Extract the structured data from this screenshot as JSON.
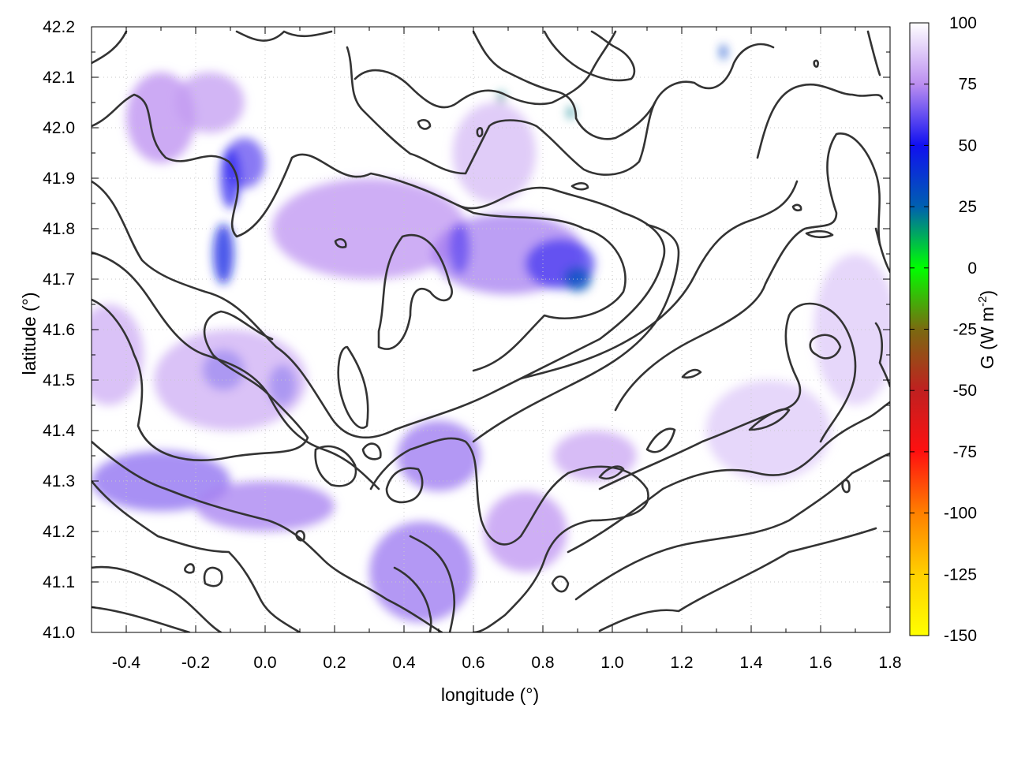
{
  "chart_data": {
    "type": "heatmap",
    "title": "",
    "xlabel": "longitude (°)",
    "ylabel": "latitude (°)",
    "xlim": [
      -0.5,
      1.8
    ],
    "ylim": [
      41.0,
      42.2
    ],
    "x_ticks": [
      "-0.4",
      "-0.2",
      "0.0",
      "0.2",
      "0.4",
      "0.6",
      "0.8",
      "1.0",
      "1.2",
      "1.4",
      "1.6",
      "1.8"
    ],
    "y_ticks": [
      "41.0",
      "41.1",
      "41.2",
      "41.3",
      "41.4",
      "41.5",
      "41.6",
      "41.7",
      "41.8",
      "41.9",
      "42.0",
      "42.1",
      "42.2"
    ],
    "grid": true,
    "colorbar": {
      "label": "G (W m",
      "label_superscript": "-2",
      "label_close": ")",
      "range": [
        -150,
        100
      ],
      "ticks": [
        "100",
        "75",
        "50",
        "25",
        "0",
        "-25",
        "-50",
        "-75",
        "-100",
        "-125",
        "-150"
      ],
      "stops": [
        {
          "value": 100,
          "color": "#ffffff"
        },
        {
          "value": 75,
          "color": "#bb8ef0"
        },
        {
          "value": 50,
          "color": "#1010f0"
        },
        {
          "value": 25,
          "color": "#0060b0"
        },
        {
          "value": 0,
          "color": "#00ff00"
        },
        {
          "value": -25,
          "color": "#7a6a10"
        },
        {
          "value": -50,
          "color": "#c02020"
        },
        {
          "value": -75,
          "color": "#ff1010"
        },
        {
          "value": -100,
          "color": "#ff8000"
        },
        {
          "value": -125,
          "color": "#ffd000"
        },
        {
          "value": -150,
          "color": "#ffff00"
        }
      ]
    },
    "field_patches": [
      {
        "lon": -0.3,
        "lat": 42.02,
        "rx": 0.1,
        "ry": 0.09,
        "value": 75
      },
      {
        "lon": -0.16,
        "lat": 42.05,
        "rx": 0.1,
        "ry": 0.06,
        "value": 78
      },
      {
        "lon": -0.06,
        "lat": 41.93,
        "rx": 0.06,
        "ry": 0.05,
        "value": 62
      },
      {
        "lon": -0.12,
        "lat": 41.75,
        "rx": 0.03,
        "ry": 0.06,
        "value": 45
      },
      {
        "lon": -0.1,
        "lat": 41.9,
        "rx": 0.03,
        "ry": 0.06,
        "value": 55
      },
      {
        "lon": -0.45,
        "lat": 41.55,
        "rx": 0.1,
        "ry": 0.1,
        "value": 82
      },
      {
        "lon": -0.12,
        "lat": 41.52,
        "rx": 0.06,
        "ry": 0.04,
        "value": 45
      },
      {
        "lon": 0.05,
        "lat": 41.49,
        "rx": 0.04,
        "ry": 0.04,
        "value": 45
      },
      {
        "lon": -0.1,
        "lat": 41.5,
        "rx": 0.22,
        "ry": 0.1,
        "value": 82
      },
      {
        "lon": -0.3,
        "lat": 41.3,
        "rx": 0.2,
        "ry": 0.06,
        "value": 68
      },
      {
        "lon": 0.0,
        "lat": 41.25,
        "rx": 0.2,
        "ry": 0.05,
        "value": 72
      },
      {
        "lon": 0.3,
        "lat": 41.8,
        "rx": 0.28,
        "ry": 0.1,
        "value": 76
      },
      {
        "lon": 0.7,
        "lat": 41.75,
        "rx": 0.22,
        "ry": 0.08,
        "value": 72
      },
      {
        "lon": 0.85,
        "lat": 41.73,
        "rx": 0.1,
        "ry": 0.05,
        "value": 58
      },
      {
        "lon": 0.9,
        "lat": 41.7,
        "rx": 0.04,
        "ry": 0.025,
        "value": 30
      },
      {
        "lon": 0.56,
        "lat": 41.76,
        "rx": 0.03,
        "ry": 0.05,
        "value": 62
      },
      {
        "lon": 0.5,
        "lat": 41.35,
        "rx": 0.12,
        "ry": 0.07,
        "value": 70
      },
      {
        "lon": 0.45,
        "lat": 41.12,
        "rx": 0.15,
        "ry": 0.1,
        "value": 70
      },
      {
        "lon": 0.75,
        "lat": 41.2,
        "rx": 0.12,
        "ry": 0.08,
        "value": 76
      },
      {
        "lon": 0.95,
        "lat": 41.35,
        "rx": 0.12,
        "ry": 0.05,
        "value": 80
      },
      {
        "lon": 0.66,
        "lat": 41.95,
        "rx": 0.12,
        "ry": 0.1,
        "value": 85
      },
      {
        "lon": 0.68,
        "lat": 42.06,
        "rx": 0.01,
        "ry": 0.012,
        "value": 20
      },
      {
        "lon": 0.88,
        "lat": 42.03,
        "rx": 0.01,
        "ry": 0.012,
        "value": 20
      },
      {
        "lon": 1.32,
        "lat": 42.15,
        "rx": 0.01,
        "ry": 0.015,
        "value": 35
      },
      {
        "lon": 1.45,
        "lat": 41.4,
        "rx": 0.18,
        "ry": 0.1,
        "value": 88
      },
      {
        "lon": 1.7,
        "lat": 41.6,
        "rx": 0.12,
        "ry": 0.15,
        "value": 88
      }
    ]
  }
}
